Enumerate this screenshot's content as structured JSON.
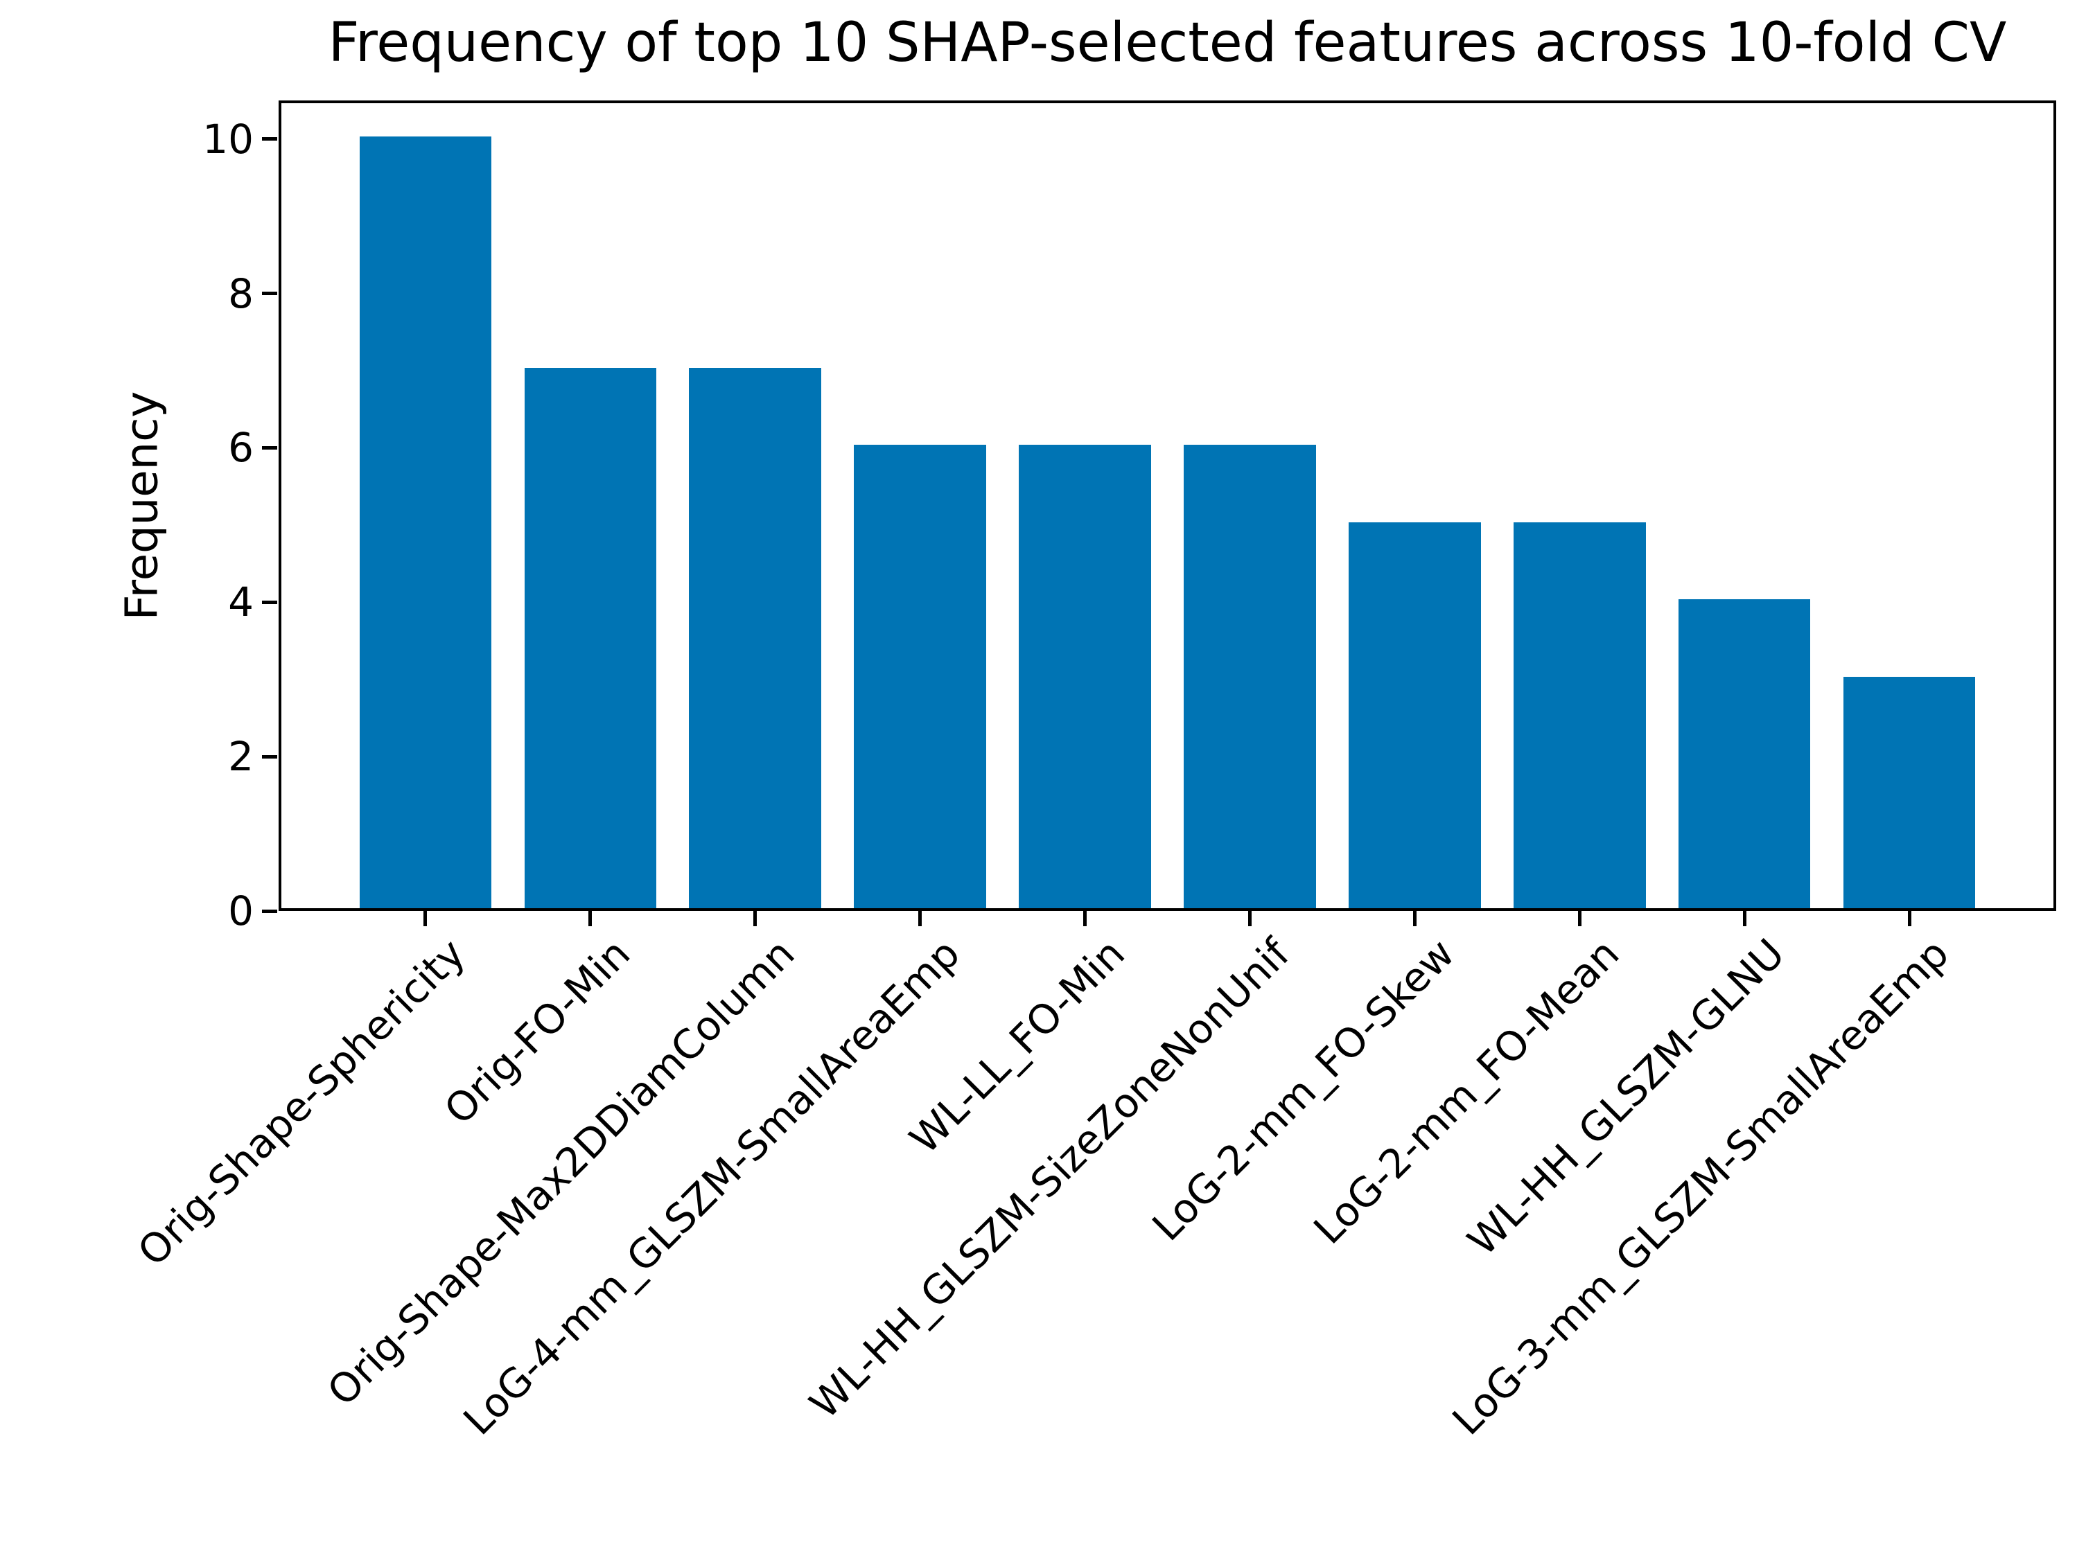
{
  "chart_data": {
    "type": "bar",
    "title": "Frequency of top 10 SHAP-selected features across 10-fold CV",
    "xlabel": "",
    "ylabel": "Frequency",
    "categories": [
      "Orig-Shape-Sphericity",
      "Orig-FO-Min",
      "Orig-Shape-Max2DDiamColumn",
      "LoG-4-mm_GLSZM-SmallAreaEmp",
      "WL-LL_FO-Min",
      "WL-HH_GLSZM-SizeZoneNonUnif",
      "LoG-2-mm_FO-Skew",
      "LoG-2-mm_FO-Mean",
      "WL-HH_GLSZM-GLNU",
      "LoG-3-mm_GLSZM-SmallAreaEmp"
    ],
    "values": [
      10,
      7,
      7,
      6,
      6,
      6,
      5,
      5,
      4,
      3
    ],
    "yticks": [
      0,
      2,
      4,
      6,
      8,
      10
    ],
    "ylim": [
      0,
      10.5
    ],
    "bar_color": "#0074b4",
    "axis_color": "#000000",
    "grid": false,
    "legend": "none",
    "x_tick_rotation_deg": 45
  }
}
